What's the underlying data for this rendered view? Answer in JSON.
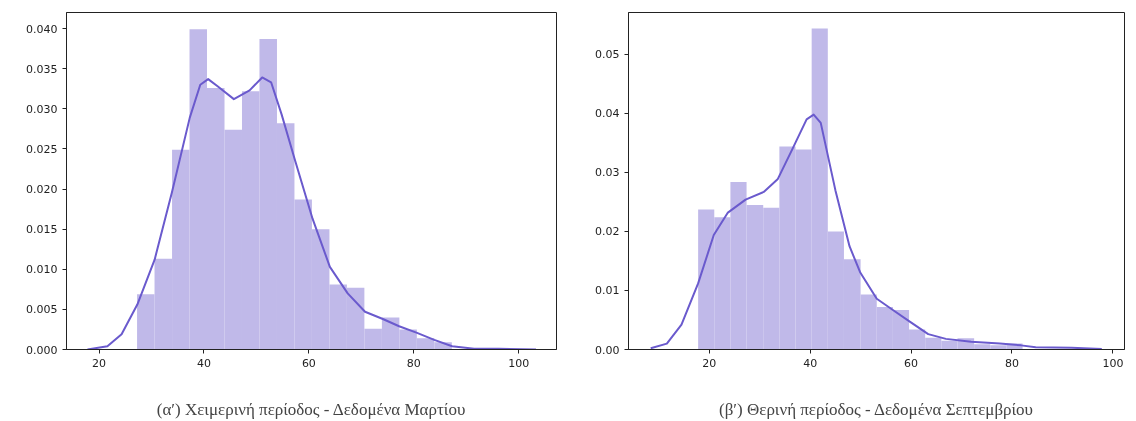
{
  "chart_data": [
    {
      "type": "histogram",
      "xlabel": "(α′) Χειμερινή περίοδος - Δεδομένα Μαρτίου",
      "color": "#c0b9e9",
      "bins": [
        27.25,
        30.58,
        33.92,
        37.25,
        40.58,
        43.92,
        47.25,
        50.58,
        53.92,
        57.25,
        60.58,
        63.92,
        67.25,
        70.58,
        73.92,
        77.25,
        80.58,
        83.92,
        87.25
      ],
      "values": [
        0.0069,
        0.0113,
        0.0249,
        0.0399,
        0.0326,
        0.0274,
        0.0322,
        0.0387,
        0.0282,
        0.0187,
        0.015,
        0.0081,
        0.0077,
        0.0026,
        0.004,
        0.0025,
        0.0014,
        0.0009
      ],
      "series": [
        {
          "type": "line",
          "color": "#6a5acd",
          "x": [
            17.8,
            21.6,
            24.3,
            27.3,
            30.6,
            33.9,
            37.3,
            39.3,
            40.8,
            42.6,
            45.7,
            48.7,
            51.1,
            52.8,
            54.8,
            57.3,
            60.7,
            64.0,
            67.4,
            70.7,
            74.1,
            77.2,
            80.5,
            83.9,
            87.3,
            91.5,
            96.2,
            103.3
          ],
          "values": [
            0.0,
            0.0004,
            0.0019,
            0.0056,
            0.0112,
            0.0196,
            0.0289,
            0.033,
            0.0337,
            0.0328,
            0.0312,
            0.0323,
            0.0339,
            0.0333,
            0.0293,
            0.0237,
            0.0163,
            0.0103,
            0.007,
            0.0047,
            0.0038,
            0.0029,
            0.0021,
            0.0012,
            0.0004,
            0.0001,
            0.0001,
            0.0
          ]
        }
      ],
      "xlim": [
        13.8,
        107.2
      ],
      "ylim": [
        0,
        0.042
      ],
      "xticks": [
        20,
        40,
        60,
        80,
        100
      ],
      "yticks": [
        {
          "value": 0,
          "label": "0.000"
        },
        {
          "value": 0.005,
          "label": "0.005"
        },
        {
          "value": 0.01,
          "label": "0.010"
        },
        {
          "value": 0.015,
          "label": "0.015"
        },
        {
          "value": 0.02,
          "label": "0.020"
        },
        {
          "value": 0.025,
          "label": "0.025"
        },
        {
          "value": 0.03,
          "label": "0.030"
        },
        {
          "value": 0.035,
          "label": "0.035"
        },
        {
          "value": 0.04,
          "label": "0.040"
        }
      ]
    },
    {
      "type": "histogram",
      "xlabel": "(β′) Θερινή περίοδος - Δεδομένα Σεπτεμβρίου",
      "color": "#c0b9e9",
      "bins": [
        17.8,
        21.0,
        24.2,
        27.4,
        30.7,
        33.9,
        37.1,
        40.3,
        43.5,
        46.7,
        50.0,
        53.2,
        56.4,
        59.6,
        62.8,
        66.0,
        69.2,
        72.5,
        75.7,
        78.9,
        82.1
      ],
      "values": [
        0.0237,
        0.0224,
        0.0284,
        0.0245,
        0.024,
        0.0344,
        0.0339,
        0.0544,
        0.02,
        0.0153,
        0.0093,
        0.0072,
        0.0067,
        0.0034,
        0.002,
        0.0015,
        0.0019,
        0.0009,
        0.0007,
        0.001
      ],
      "series": [
        {
          "type": "line",
          "color": "#6a5acd",
          "x": [
            8.4,
            11.6,
            14.5,
            17.8,
            20.9,
            23.7,
            27.2,
            30.8,
            33.6,
            36.5,
            39.3,
            40.7,
            42.1,
            45.0,
            47.8,
            49.9,
            53.2,
            56.4,
            59.6,
            63.4,
            66.9,
            71.9,
            77.6,
            81.8,
            84.7,
            91.8,
            97.8
          ],
          "values": [
            0.0002,
            0.001,
            0.0042,
            0.0112,
            0.0194,
            0.0232,
            0.0254,
            0.0267,
            0.0289,
            0.034,
            0.039,
            0.0398,
            0.0384,
            0.027,
            0.0175,
            0.0131,
            0.0086,
            0.0067,
            0.0048,
            0.0026,
            0.0018,
            0.0013,
            0.001,
            0.0007,
            0.0004,
            0.0003,
            0.0001
          ]
        }
      ],
      "xlim": [
        4.0,
        102.3
      ],
      "ylim": [
        0,
        0.0571
      ],
      "xticks": [
        20,
        40,
        60,
        80,
        100
      ],
      "yticks": [
        {
          "value": 0,
          "label": "0.00"
        },
        {
          "value": 0.01,
          "label": "0.01"
        },
        {
          "value": 0.02,
          "label": "0.02"
        },
        {
          "value": 0.03,
          "label": "0.03"
        },
        {
          "value": 0.04,
          "label": "0.04"
        },
        {
          "value": 0.05,
          "label": "0.05"
        }
      ]
    }
  ]
}
